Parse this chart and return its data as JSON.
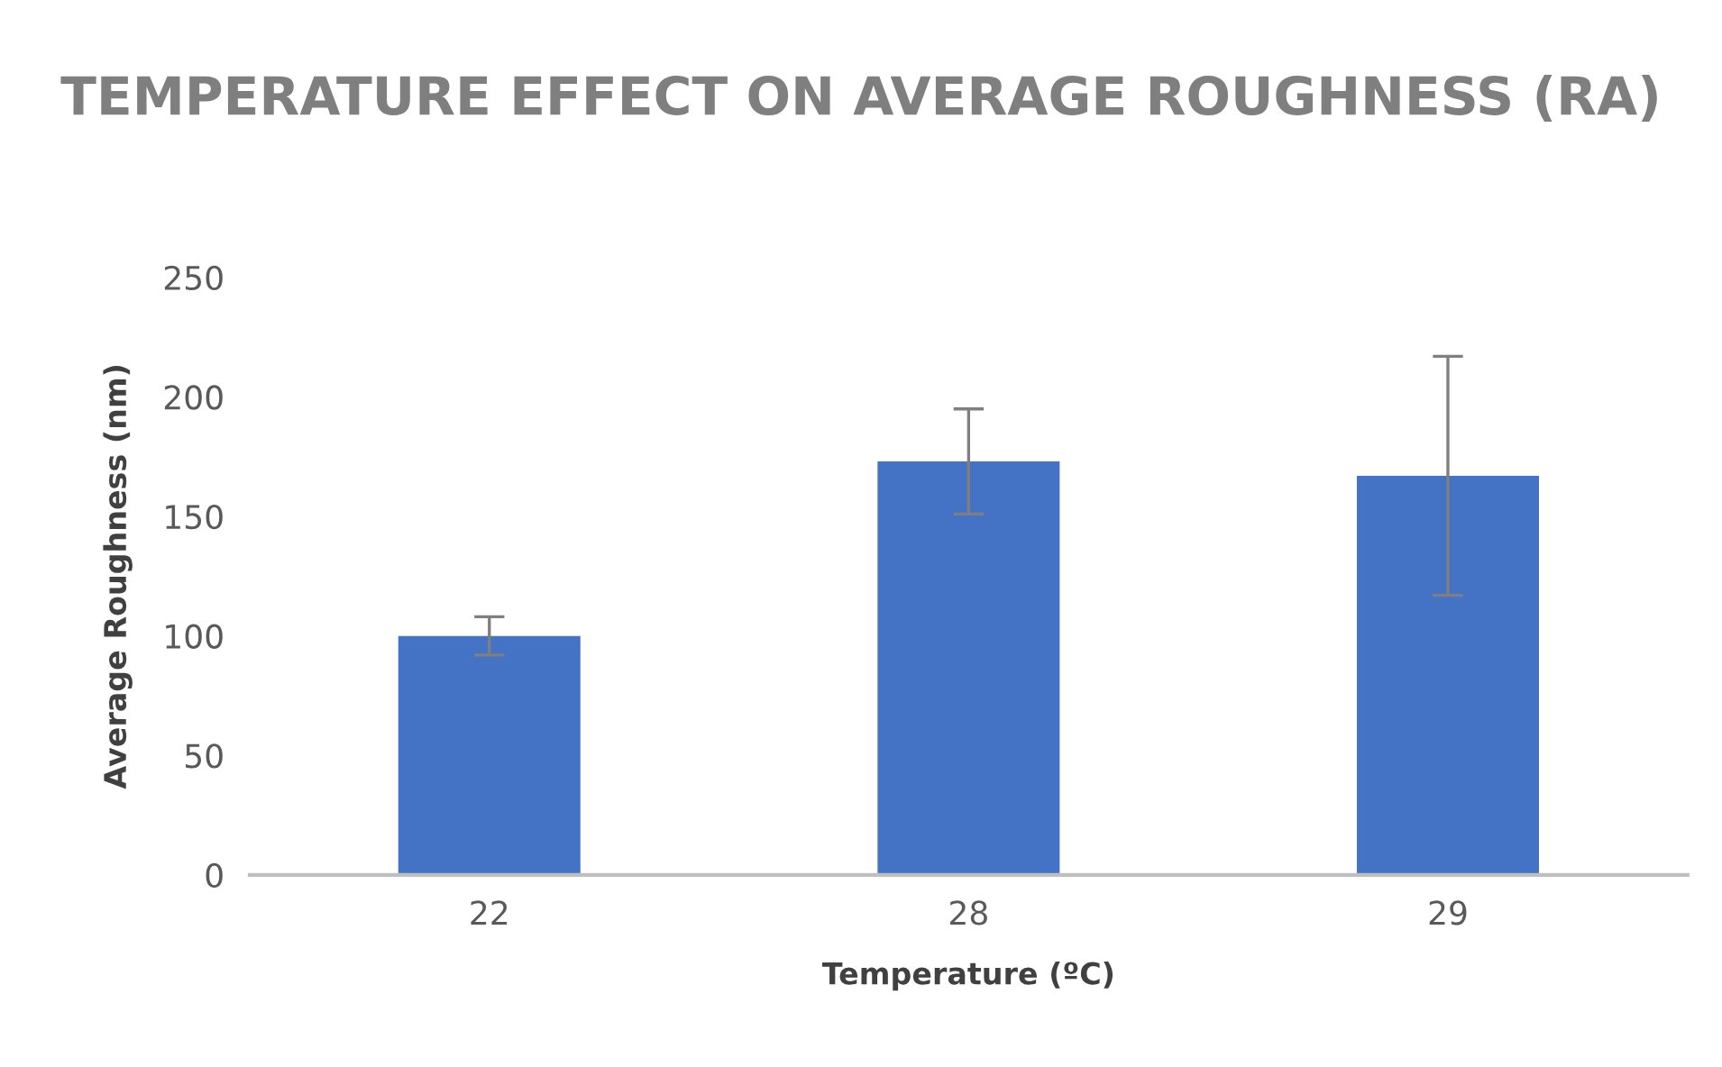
{
  "chart_data": {
    "type": "bar",
    "title": "TEMPERATURE EFFECT ON AVERAGE ROUGHNESS (RA)",
    "xlabel": "Temperature (ºC)",
    "ylabel": "Average Roughness (nm)",
    "categories": [
      "22",
      "28",
      "29"
    ],
    "values": [
      100,
      173,
      167
    ],
    "color": "#4472c4",
    "errors": [
      8,
      22,
      50
    ],
    "ylim": [
      0,
      250
    ],
    "yticks": [
      0,
      50,
      100,
      150,
      200,
      250
    ],
    "grid": false,
    "legend": false
  }
}
